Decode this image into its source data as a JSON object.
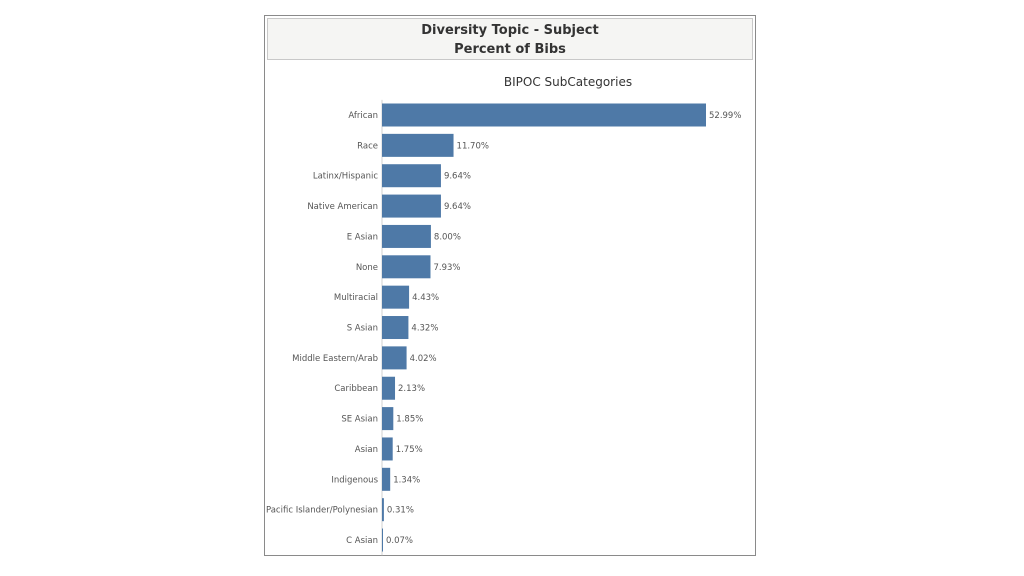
{
  "header": {
    "title_line1": "Diversity Topic - Subject",
    "title_line2": "Percent of Bibs"
  },
  "chart_data": {
    "type": "bar",
    "orientation": "horizontal",
    "title": "BIPOC SubCategories",
    "bar_color": "#4e79a7",
    "categories": [
      "African",
      "Race",
      "Latinx/Hispanic",
      "Native American",
      "E Asian",
      "None",
      "Multiracial",
      "S Asian",
      "Middle Eastern/Arab",
      "Caribbean",
      "SE Asian",
      "Asian",
      "Indigenous",
      "Pacific Islander/Polynesian",
      "C Asian"
    ],
    "values": [
      52.99,
      11.7,
      9.64,
      9.64,
      8.0,
      7.93,
      4.43,
      4.32,
      4.02,
      2.13,
      1.85,
      1.75,
      1.34,
      0.31,
      0.07
    ],
    "value_labels": [
      "52.99%",
      "11.70%",
      "9.64%",
      "9.64%",
      "8.00%",
      "7.93%",
      "4.43%",
      "4.32%",
      "4.02%",
      "2.13%",
      "1.85%",
      "1.75%",
      "1.34%",
      "0.31%",
      "0.07%"
    ],
    "xlim": [
      0,
      52.99
    ],
    "grid": false,
    "legend": "none"
  }
}
